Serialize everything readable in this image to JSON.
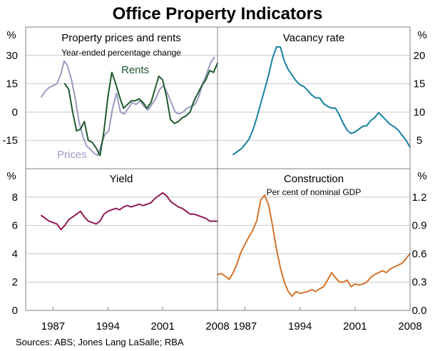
{
  "title": "Office Property Indicators",
  "source": "Sources: ABS; Jones Lang LaSalle; RBA",
  "colors": {
    "frame": "#7f7f7f",
    "grid": "#c8c8c8",
    "prices": "#9a9ac2",
    "rents": "#1e5a2e",
    "vacancy": "#1880a0",
    "yield": "#8e1a52",
    "construction": "#d2722a"
  },
  "x_ticks": [
    "1987",
    "1994",
    "2001",
    "2008"
  ],
  "chart_data": [
    {
      "type": "line",
      "panel": "top-left",
      "title": "Property prices and rents",
      "subtitle": "Year-ended percentage change",
      "ylabel": "%",
      "xlim": [
        1983.5,
        2008
      ],
      "ylim": [
        -30,
        45
      ],
      "y_ticks": [
        "-15",
        "0",
        "15",
        "30"
      ],
      "grid": true,
      "series": [
        {
          "name": "Prices",
          "color": "prices",
          "label_text": "Prices",
          "x": [
            1985.5,
            1986.0,
            1986.5,
            1987.0,
            1987.5,
            1988.0,
            1988.4,
            1988.8,
            1989.3,
            1989.8,
            1990.3,
            1990.8,
            1991.3,
            1991.8,
            1992.3,
            1992.7,
            1993.1,
            1993.6,
            1994.1,
            1994.6,
            1995.1,
            1995.6,
            1996.1,
            1996.6,
            1997.1,
            1997.6,
            1998.1,
            1998.6,
            1999.1,
            1999.6,
            2000.1,
            2000.6,
            2001.1,
            2001.6,
            2002.1,
            2002.6,
            2003.1,
            2003.6,
            2004.1,
            2004.6,
            2005.1,
            2005.6,
            2006.1,
            2006.6,
            2007.1,
            2007.6
          ],
          "y": [
            8,
            11,
            13,
            14,
            15,
            20,
            27,
            25,
            18,
            8,
            -5,
            -13,
            -18,
            -20,
            -22,
            -23,
            -18,
            -12,
            -10,
            2,
            10,
            0,
            -1,
            2,
            5,
            4,
            6,
            3,
            1,
            4,
            7,
            12,
            14,
            10,
            5,
            0,
            -1,
            0,
            2,
            3,
            4,
            8,
            15,
            20,
            26,
            29
          ]
        },
        {
          "name": "Rents",
          "color": "rents",
          "label_text": "Rents",
          "x": [
            1988.5,
            1989.0,
            1989.5,
            1990.0,
            1990.5,
            1991.0,
            1991.5,
            1992.0,
            1992.5,
            1993.0,
            1993.5,
            1994.0,
            1994.5,
            1995.0,
            1995.5,
            1996.0,
            1996.5,
            1997.0,
            1997.5,
            1998.0,
            1998.5,
            1999.0,
            1999.5,
            2000.0,
            2000.5,
            2001.0,
            2001.5,
            2002.0,
            2002.5,
            2003.0,
            2003.5,
            2004.0,
            2004.5,
            2005.0,
            2005.5,
            2006.0,
            2006.5,
            2007.0,
            2007.5,
            2008.0
          ],
          "y": [
            15,
            12,
            0,
            -10,
            -9,
            -5,
            -15,
            -16,
            -19,
            -23,
            -10,
            8,
            21,
            15,
            8,
            2,
            4,
            6,
            6,
            7,
            5,
            2,
            5,
            12,
            19,
            17,
            8,
            -4,
            -6,
            -5,
            -3,
            -2,
            0,
            6,
            10,
            14,
            17,
            22,
            21,
            26
          ]
        }
      ]
    },
    {
      "type": "line",
      "panel": "top-right",
      "title": "Vacancy rate",
      "ylabel": "%",
      "xlim": [
        1983.5,
        2008
      ],
      "ylim": [
        0,
        25
      ],
      "y_ticks": [
        "5",
        "10",
        "15",
        "20"
      ],
      "grid": true,
      "series": [
        {
          "color": "vacancy",
          "x": [
            1985.5,
            1986.0,
            1986.5,
            1987.0,
            1987.5,
            1988.0,
            1988.5,
            1989.0,
            1989.5,
            1990.0,
            1990.5,
            1991.0,
            1991.5,
            1992.0,
            1992.5,
            1993.0,
            1993.5,
            1994.0,
            1994.5,
            1995.0,
            1995.5,
            1996.0,
            1996.5,
            1997.0,
            1997.5,
            1998.0,
            1998.5,
            1999.0,
            1999.5,
            2000.0,
            2000.5,
            2001.0,
            2001.5,
            2002.0,
            2002.5,
            2003.0,
            2003.5,
            2004.0,
            2004.5,
            2005.0,
            2005.5,
            2006.0,
            2006.5,
            2007.0,
            2007.5,
            2008.0
          ],
          "y": [
            2.5,
            3.0,
            3.5,
            4.3,
            5.2,
            6.8,
            9.0,
            11.5,
            14.0,
            16.5,
            19.5,
            21.5,
            21.5,
            19.0,
            17.5,
            16.5,
            15.5,
            14.8,
            14.5,
            13.8,
            13.0,
            12.5,
            12.5,
            11.5,
            11.0,
            10.7,
            10.7,
            9.5,
            8.0,
            6.8,
            6.2,
            6.5,
            7.0,
            7.5,
            7.6,
            8.5,
            9.0,
            9.9,
            9.2,
            8.5,
            7.8,
            7.4,
            6.8,
            5.9,
            5.0,
            3.8
          ]
        }
      ]
    },
    {
      "type": "line",
      "panel": "bottom-left",
      "title": "Yield",
      "ylabel": "%",
      "xlim": [
        1983.5,
        2008
      ],
      "ylim": [
        0,
        10
      ],
      "y_ticks": [
        "0",
        "2",
        "4",
        "6",
        "8"
      ],
      "grid": true,
      "series": [
        {
          "color": "yield",
          "x": [
            1985.5,
            1986.0,
            1986.5,
            1987.0,
            1987.5,
            1988.0,
            1988.5,
            1989.0,
            1989.5,
            1990.0,
            1990.5,
            1991.0,
            1991.5,
            1992.0,
            1992.5,
            1993.0,
            1993.5,
            1994.0,
            1994.5,
            1995.0,
            1995.5,
            1996.0,
            1996.5,
            1997.0,
            1997.5,
            1998.0,
            1998.5,
            1999.0,
            1999.5,
            2000.0,
            2000.5,
            2001.0,
            2001.5,
            2002.0,
            2002.5,
            2003.0,
            2003.5,
            2004.0,
            2004.5,
            2005.0,
            2005.5,
            2006.0,
            2006.5,
            2007.0,
            2007.5,
            2008.0
          ],
          "y": [
            6.7,
            6.5,
            6.3,
            6.2,
            6.1,
            5.7,
            6.0,
            6.4,
            6.6,
            6.8,
            7.0,
            6.6,
            6.3,
            6.2,
            6.1,
            6.3,
            6.8,
            7.0,
            7.1,
            7.2,
            7.1,
            7.3,
            7.4,
            7.3,
            7.4,
            7.5,
            7.4,
            7.5,
            7.6,
            7.9,
            8.1,
            8.3,
            8.1,
            7.7,
            7.5,
            7.3,
            7.2,
            7.0,
            6.8,
            6.8,
            6.7,
            6.6,
            6.5,
            6.3,
            6.3,
            6.3
          ]
        }
      ]
    },
    {
      "type": "line",
      "panel": "bottom-right",
      "title": "Construction",
      "subtitle": "Per cent of nominal GDP",
      "ylabel": "%",
      "xlim": [
        1983.5,
        2008
      ],
      "ylim": [
        0,
        1.5
      ],
      "y_ticks": [
        "0.0",
        "0.3",
        "0.6",
        "0.9",
        "1.2"
      ],
      "grid": true,
      "series": [
        {
          "color": "construction",
          "x": [
            1983.5,
            1984.0,
            1984.5,
            1985.0,
            1985.5,
            1986.0,
            1986.5,
            1987.0,
            1987.5,
            1988.0,
            1988.5,
            1989.0,
            1989.5,
            1990.0,
            1990.5,
            1991.0,
            1991.5,
            1992.0,
            1992.5,
            1993.0,
            1993.5,
            1994.0,
            1994.5,
            1995.0,
            1995.5,
            1996.0,
            1996.5,
            1997.0,
            1997.5,
            1998.0,
            1998.5,
            1999.0,
            1999.5,
            2000.0,
            2000.5,
            2001.0,
            2001.5,
            2002.0,
            2002.5,
            2003.0,
            2003.5,
            2004.0,
            2004.5,
            2005.0,
            2005.5,
            2006.0,
            2006.5,
            2007.0,
            2007.5,
            2008.0
          ],
          "y": [
            0.38,
            0.39,
            0.36,
            0.33,
            0.4,
            0.5,
            0.62,
            0.7,
            0.78,
            0.85,
            0.95,
            1.17,
            1.22,
            1.12,
            0.9,
            0.65,
            0.45,
            0.3,
            0.2,
            0.15,
            0.2,
            0.18,
            0.19,
            0.2,
            0.22,
            0.2,
            0.23,
            0.25,
            0.32,
            0.4,
            0.35,
            0.3,
            0.3,
            0.32,
            0.25,
            0.28,
            0.27,
            0.28,
            0.3,
            0.35,
            0.38,
            0.4,
            0.42,
            0.4,
            0.44,
            0.46,
            0.48,
            0.5,
            0.55,
            0.6
          ]
        }
      ]
    }
  ]
}
